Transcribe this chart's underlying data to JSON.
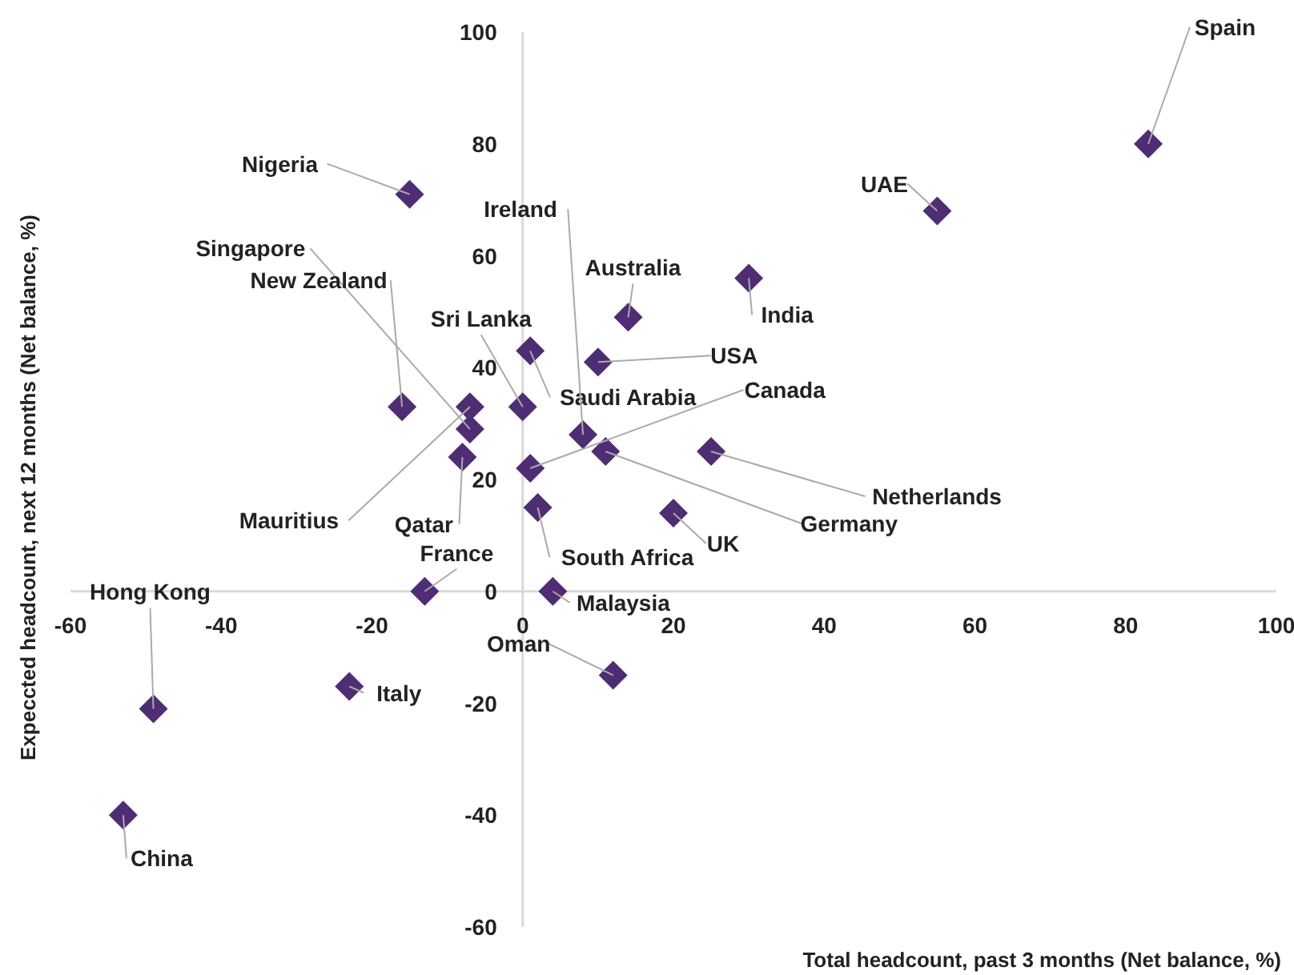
{
  "chart_data": {
    "type": "scatter",
    "xlabel": "Total headcount, past 3 months (Net balance, %)",
    "ylabel": "Expeccted headcount, next 12 months (Net balance, %)",
    "x": [
      83,
      55,
      30,
      14,
      10,
      1,
      0,
      8,
      11,
      1,
      2,
      20,
      25,
      4,
      -13,
      -8,
      -7,
      -7,
      -16,
      -15,
      -49,
      -53,
      -23,
      12
    ],
    "series": [
      {
        "color": "#4e2d74",
        "values": [
          80,
          68,
          56,
          49,
          41,
          43,
          33,
          28,
          25,
          22,
          15,
          14,
          25,
          0,
          0,
          24,
          33,
          29,
          33,
          71,
          -21,
          -40,
          -17,
          -15
        ]
      }
    ],
    "marker": "diamond",
    "grid": false,
    "xlim": [
      -60,
      100
    ],
    "xticks": [
      -60,
      -40,
      -20,
      0,
      20,
      40,
      60,
      80,
      100
    ],
    "ylim": [
      -60,
      100
    ],
    "yticks": [
      -60,
      -40,
      -20,
      0,
      20,
      40,
      60,
      80,
      100
    ],
    "annotations": [
      {
        "text": "Spain",
        "x": 83,
        "y": 80
      },
      {
        "text": "UAE",
        "x": 55,
        "y": 68
      },
      {
        "text": "India",
        "x": 30,
        "y": 56
      },
      {
        "text": "Australia",
        "x": 14,
        "y": 49
      },
      {
        "text": "USA",
        "x": 10,
        "y": 41
      },
      {
        "text": "Saudi Arabia",
        "x": 1,
        "y": 43
      },
      {
        "text": "Sri Lanka",
        "x": 0,
        "y": 33
      },
      {
        "text": "Ireland",
        "x": 8,
        "y": 28
      },
      {
        "text": "Germany",
        "x": 11,
        "y": 25
      },
      {
        "text": "Canada",
        "x": 1,
        "y": 22
      },
      {
        "text": "South Africa",
        "x": 2,
        "y": 15
      },
      {
        "text": "UK",
        "x": 20,
        "y": 14
      },
      {
        "text": "Netherlands",
        "x": 25,
        "y": 25
      },
      {
        "text": "Malaysia",
        "x": 4,
        "y": 0
      },
      {
        "text": "France",
        "x": -13,
        "y": 0
      },
      {
        "text": "Qatar",
        "x": -8,
        "y": 24
      },
      {
        "text": "Mauritius",
        "x": -7,
        "y": 33
      },
      {
        "text": "Singapore",
        "x": -7,
        "y": 29
      },
      {
        "text": "New Zealand",
        "x": -16,
        "y": 33
      },
      {
        "text": "Nigeria",
        "x": -15,
        "y": 71
      },
      {
        "text": "Hong Kong",
        "x": -49,
        "y": -21
      },
      {
        "text": "China",
        "x": -53,
        "y": -40
      },
      {
        "text": "Italy",
        "x": -23,
        "y": -17
      },
      {
        "text": "Oman",
        "x": 12,
        "y": -15
      }
    ]
  }
}
